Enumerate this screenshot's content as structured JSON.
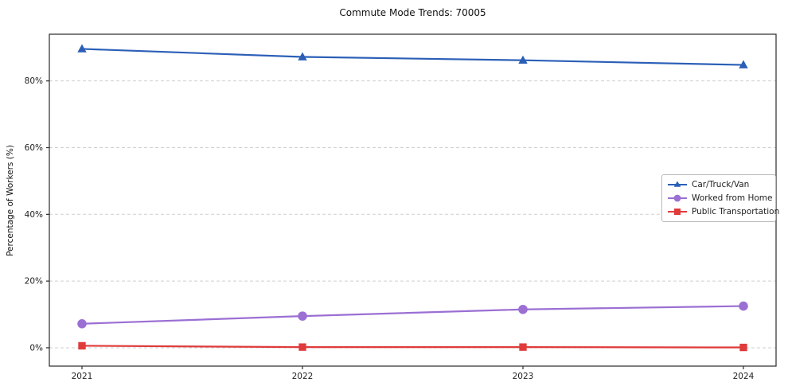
{
  "chart_data": {
    "type": "line",
    "title": "Commute Mode Trends: 70005",
    "xlabel": "",
    "ylabel": "Percentage of Workers (%)",
    "x": [
      2021,
      2022,
      2023,
      2024
    ],
    "x_tick_labels": [
      "2021",
      "2022",
      "2023",
      "2024"
    ],
    "yticks": [
      0,
      20,
      40,
      60,
      80
    ],
    "ytick_suffix": "%",
    "ylim": [
      -5.5,
      94
    ],
    "grid": "dashed-horizontal",
    "grid_color": "#cfcfcf",
    "axis_color": "#2a2a2a",
    "legend_position": "middle-right",
    "series": [
      {
        "name": "Car/Truck/Van",
        "marker": "triangle",
        "color": "#2b5fb7",
        "values": [
          89.6,
          87.2,
          86.2,
          84.8
        ]
      },
      {
        "name": "Worked from Home",
        "marker": "circle",
        "color": "#9b6fd3",
        "values": [
          7.2,
          9.5,
          11.5,
          12.5
        ]
      },
      {
        "name": "Public Transportation",
        "marker": "square",
        "color": "#e03b3b",
        "values": [
          0.6,
          0.2,
          0.2,
          0.1
        ]
      }
    ]
  }
}
